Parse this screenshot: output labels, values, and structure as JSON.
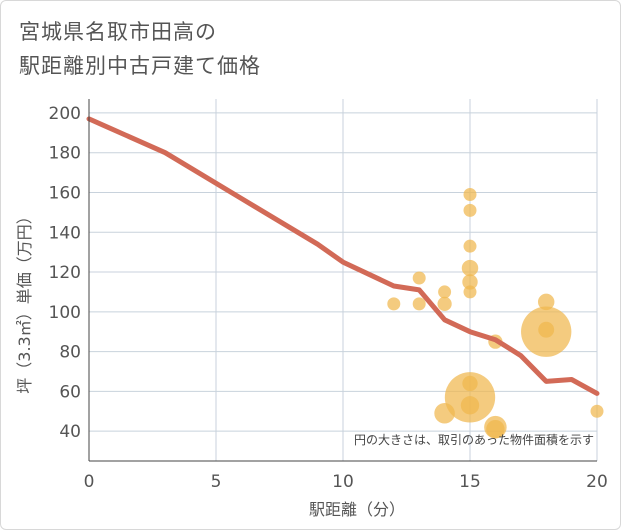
{
  "chart_data": {
    "type": "scatter",
    "title_line1": "宮城県名取市田高の",
    "title_line2": "駅距離別中古戸建て価格",
    "xlabel": "駅距離（分）",
    "ylabel": "坪（3.3㎡）単価（万円）",
    "xlim": [
      0,
      20
    ],
    "ylim": [
      25,
      207
    ],
    "x_ticks": [
      0,
      5,
      10,
      15,
      20
    ],
    "y_ticks": [
      40,
      60,
      80,
      100,
      120,
      140,
      160,
      180,
      200
    ],
    "note": "円の大きさは、取引のあった物件面積を示す",
    "colors": {
      "bubble": "#f0b74d",
      "line": "#d26a57",
      "grid": "#c8d2dc"
    },
    "trend_line": {
      "x": [
        0,
        3,
        6,
        9,
        10,
        12,
        13,
        14,
        15,
        16,
        17,
        18,
        19,
        20
      ],
      "y": [
        197,
        180,
        157,
        134,
        125,
        113,
        111,
        96,
        90,
        86,
        78,
        65,
        66,
        59
      ]
    },
    "points": [
      {
        "x": 12,
        "y": 104,
        "size": 1
      },
      {
        "x": 13,
        "y": 117,
        "size": 1
      },
      {
        "x": 13,
        "y": 104,
        "size": 1
      },
      {
        "x": 14,
        "y": 110,
        "size": 1
      },
      {
        "x": 14,
        "y": 104,
        "size": 1.2
      },
      {
        "x": 14,
        "y": 49,
        "size": 2.5
      },
      {
        "x": 15,
        "y": 159,
        "size": 1
      },
      {
        "x": 15,
        "y": 151,
        "size": 1
      },
      {
        "x": 15,
        "y": 133,
        "size": 1
      },
      {
        "x": 15,
        "y": 122,
        "size": 1.6
      },
      {
        "x": 15,
        "y": 115,
        "size": 1.4
      },
      {
        "x": 15,
        "y": 110,
        "size": 1
      },
      {
        "x": 15,
        "y": 64,
        "size": 1.4
      },
      {
        "x": 15,
        "y": 57,
        "size": 15
      },
      {
        "x": 15,
        "y": 53,
        "size": 2
      },
      {
        "x": 16,
        "y": 85,
        "size": 1.2
      },
      {
        "x": 16,
        "y": 42,
        "size": 3
      },
      {
        "x": 16,
        "y": 41,
        "size": 2
      },
      {
        "x": 18,
        "y": 105,
        "size": 1.6
      },
      {
        "x": 18,
        "y": 90,
        "size": 15
      },
      {
        "x": 18,
        "y": 91,
        "size": 1.5
      },
      {
        "x": 20,
        "y": 50,
        "size": 1
      }
    ]
  }
}
